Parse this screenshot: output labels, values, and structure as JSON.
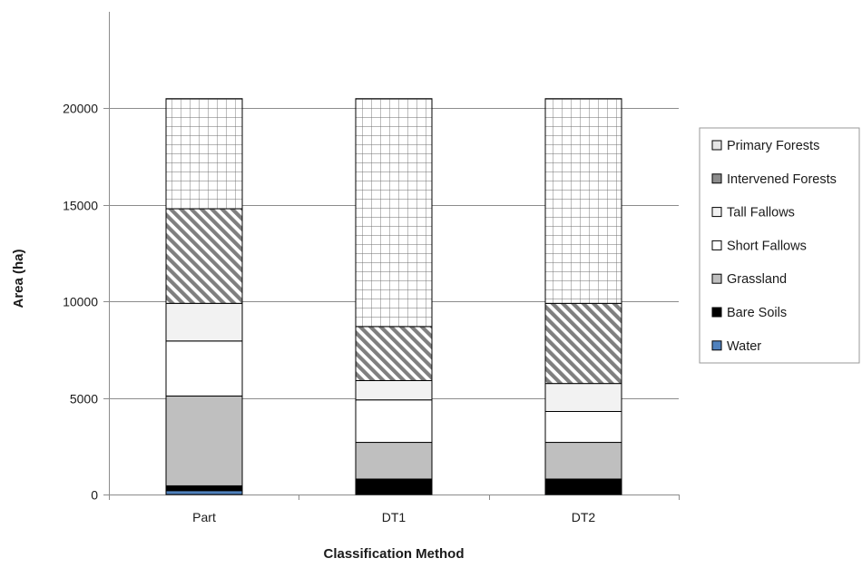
{
  "chart_data": {
    "type": "bar",
    "stacked": true,
    "categories": [
      "Part",
      "DT1",
      "DT2"
    ],
    "series": [
      {
        "name": "Water",
        "values": [
          200,
          50,
          50
        ],
        "color": "#4f81bd",
        "pattern": "solid"
      },
      {
        "name": "Bare Soils",
        "values": [
          250,
          750,
          750
        ],
        "color": "#000000",
        "pattern": "solid"
      },
      {
        "name": "Grassland",
        "values": [
          4650,
          1900,
          1900
        ],
        "color": "#bfbfbf",
        "pattern": "solid"
      },
      {
        "name": "Short Fallows",
        "values": [
          2850,
          2200,
          1600
        ],
        "color": "#ffffff",
        "pattern": "solid"
      },
      {
        "name": "Tall Fallows",
        "values": [
          1950,
          1000,
          1450
        ],
        "color": "#f2f2f2",
        "pattern": "solid"
      },
      {
        "name": "Intervened Forests",
        "values": [
          4900,
          2800,
          4150
        ],
        "color": "#a6a6a6",
        "pattern": "diagonal"
      },
      {
        "name": "Primary Forests",
        "values": [
          5700,
          11800,
          10600
        ],
        "color": "#ffffff",
        "pattern": "grid"
      }
    ],
    "xlabel": "Classification Method",
    "ylabel": "Area (ha)",
    "ylim": [
      0,
      25000
    ],
    "yticks": [
      0,
      5000,
      10000,
      15000,
      20000
    ],
    "grid": true,
    "legend": "right",
    "legend_order": [
      "Primary Forests",
      "Intervened Forests",
      "Tall Fallows",
      "Short Fallows",
      "Grassland",
      "Bare Soils",
      "Water"
    ],
    "legend_colors": {
      "Primary Forests": "#e6e6e6",
      "Intervened Forests": "#8c8c8c",
      "Tall Fallows": "#f2f2f2",
      "Short Fallows": "#ffffff",
      "Grassland": "#bfbfbf",
      "Bare Soils": "#000000",
      "Water": "#4f81bd"
    }
  }
}
